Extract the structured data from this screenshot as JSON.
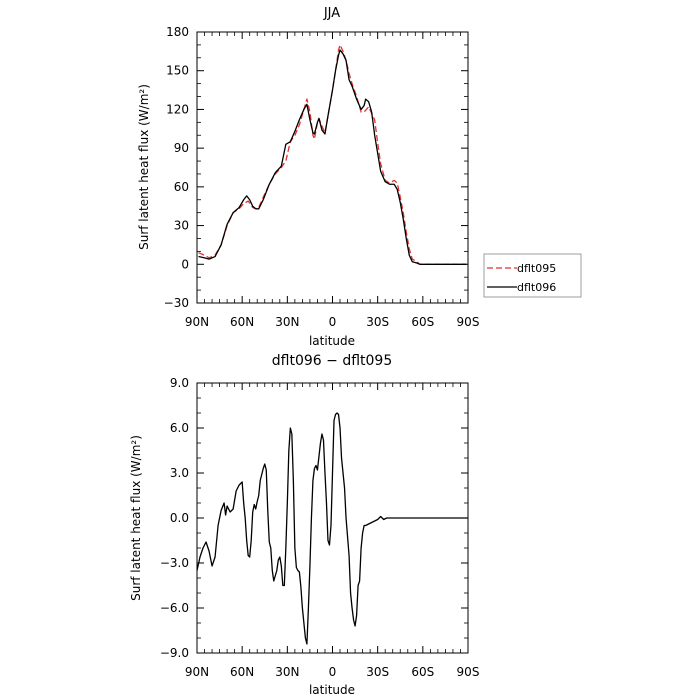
{
  "chart_data": [
    {
      "type": "line",
      "title": "JJA",
      "xlabel": "latitude",
      "ylabel": "Surf latent heat flux (W/m²)",
      "xlim": [
        -90,
        90
      ],
      "ylim": [
        -30,
        180
      ],
      "xticks": [
        -90,
        -60,
        -30,
        0,
        30,
        60,
        90
      ],
      "xtick_labels": [
        "90N",
        "60N",
        "30N",
        "0",
        "30S",
        "60S",
        "90S"
      ],
      "yticks": [
        -30,
        0,
        30,
        60,
        90,
        120,
        150,
        180
      ],
      "ytick_labels": [
        "−30",
        "0",
        "30",
        "60",
        "90",
        "120",
        "150",
        "180"
      ],
      "legend_position": "right",
      "series": [
        {
          "name": "dflt095",
          "color": "#e03030",
          "dash": "dashed",
          "points": [
            [
              -89,
              9
            ],
            [
              -85,
              7
            ],
            [
              -82,
              5
            ],
            [
              -78,
              7
            ],
            [
              -74,
              15
            ],
            [
              -70,
              30
            ],
            [
              -66,
              40
            ],
            [
              -62,
              43
            ],
            [
              -59,
              47
            ],
            [
              -56,
              49
            ],
            [
              -53,
              44
            ],
            [
              -51,
              43
            ],
            [
              -49,
              44
            ],
            [
              -46,
              52
            ],
            [
              -42,
              62
            ],
            [
              -38,
              70
            ],
            [
              -34,
              75
            ],
            [
              -31,
              80
            ],
            [
              -28,
              95
            ],
            [
              -25,
              100
            ],
            [
              -22,
              108
            ],
            [
              -19,
              120
            ],
            [
              -17,
              128
            ],
            [
              -15,
              118
            ],
            [
              -13,
              100
            ],
            [
              -12,
              97
            ],
            [
              -10,
              110
            ],
            [
              -9,
              113
            ],
            [
              -7,
              107
            ],
            [
              -5,
              102
            ],
            [
              -3,
              115
            ],
            [
              0,
              135
            ],
            [
              2,
              150
            ],
            [
              4,
              166
            ],
            [
              5,
              170
            ],
            [
              7,
              165
            ],
            [
              9,
              158
            ],
            [
              11,
              148
            ],
            [
              13,
              140
            ],
            [
              16,
              130
            ],
            [
              19,
              118
            ],
            [
              21,
              118
            ],
            [
              24,
              122
            ],
            [
              26,
              117
            ],
            [
              28,
              112
            ],
            [
              30,
              94
            ],
            [
              32,
              78
            ],
            [
              35,
              65
            ],
            [
              38,
              63
            ],
            [
              41,
              65
            ],
            [
              43,
              63
            ],
            [
              45,
              52
            ],
            [
              47,
              40
            ],
            [
              49,
              25
            ],
            [
              51,
              12
            ],
            [
              53,
              4
            ],
            [
              56,
              2
            ],
            [
              58,
              0
            ],
            [
              62,
              0
            ],
            [
              67,
              0
            ],
            [
              72,
              0
            ],
            [
              80,
              0
            ],
            [
              89,
              0
            ]
          ]
        },
        {
          "name": "dflt096",
          "color": "#000000",
          "dash": "solid",
          "points": [
            [
              -89,
              6
            ],
            [
              -85,
              5
            ],
            [
              -82,
              4
            ],
            [
              -78,
              6
            ],
            [
              -74,
              15
            ],
            [
              -70,
              31
            ],
            [
              -66,
              40
            ],
            [
              -62,
              44
            ],
            [
              -59,
              50
            ],
            [
              -57,
              53
            ],
            [
              -55,
              50
            ],
            [
              -53,
              45
            ],
            [
              -51,
              43
            ],
            [
              -49,
              43
            ],
            [
              -46,
              50
            ],
            [
              -42,
              62
            ],
            [
              -38,
              71
            ],
            [
              -34,
              76
            ],
            [
              -31,
              93
            ],
            [
              -28,
              95
            ],
            [
              -25,
              103
            ],
            [
              -22,
              112
            ],
            [
              -19,
              120
            ],
            [
              -17,
              124
            ],
            [
              -15,
              112
            ],
            [
              -13,
              102
            ],
            [
              -12,
              101
            ],
            [
              -10,
              110
            ],
            [
              -9,
              113
            ],
            [
              -7,
              104
            ],
            [
              -5,
              101
            ],
            [
              -3,
              115
            ],
            [
              0,
              135
            ],
            [
              2,
              150
            ],
            [
              4,
              162
            ],
            [
              5,
              166
            ],
            [
              7,
              163
            ],
            [
              9,
              158
            ],
            [
              11,
              143
            ],
            [
              13,
              138
            ],
            [
              16,
              128
            ],
            [
              19,
              120
            ],
            [
              21,
              123
            ],
            [
              22,
              128
            ],
            [
              24,
              126
            ],
            [
              26,
              118
            ],
            [
              28,
              100
            ],
            [
              30,
              86
            ],
            [
              32,
              72
            ],
            [
              35,
              64
            ],
            [
              38,
              62
            ],
            [
              41,
              62
            ],
            [
              43,
              58
            ],
            [
              45,
              48
            ],
            [
              47,
              35
            ],
            [
              49,
              20
            ],
            [
              51,
              7
            ],
            [
              53,
              2
            ],
            [
              56,
              1
            ],
            [
              58,
              0
            ],
            [
              62,
              0
            ],
            [
              67,
              0
            ],
            [
              72,
              0
            ],
            [
              80,
              0
            ],
            [
              89,
              0
            ]
          ]
        }
      ]
    },
    {
      "type": "line",
      "title": "dflt096 − dflt095",
      "xlabel": "latitude",
      "ylabel": "Surf latent heat flux (W/m²)",
      "xlim": [
        -90,
        90
      ],
      "ylim": [
        -9,
        9
      ],
      "xticks": [
        -90,
        -60,
        -30,
        0,
        30,
        60,
        90
      ],
      "xtick_labels": [
        "90N",
        "60N",
        "30N",
        "0",
        "30S",
        "60S",
        "90S"
      ],
      "yticks": [
        -9,
        -6,
        -3,
        0,
        3,
        6,
        9
      ],
      "ytick_labels": [
        "−9.0",
        "−6.0",
        "−3.0",
        "0.0",
        "3.0",
        "6.0",
        "9.0"
      ],
      "series": [
        {
          "name": "",
          "color": "#000000",
          "dash": "solid",
          "points": [
            [
              -90,
              -3.5
            ],
            [
              -88,
              -2.6
            ],
            [
              -86,
              -2.0
            ],
            [
              -84,
              -1.6
            ],
            [
              -82,
              -2.2
            ],
            [
              -80,
              -3.2
            ],
            [
              -78,
              -2.6
            ],
            [
              -76,
              -0.5
            ],
            [
              -74,
              0.5
            ],
            [
              -72,
              1.0
            ],
            [
              -71,
              0.2
            ],
            [
              -70,
              0.8
            ],
            [
              -68,
              0.4
            ],
            [
              -66,
              0.6
            ],
            [
              -64,
              1.8
            ],
            [
              -62,
              2.2
            ],
            [
              -60,
              2.4
            ],
            [
              -59,
              1.0
            ],
            [
              -58,
              0.0
            ],
            [
              -57,
              -1.5
            ],
            [
              -56,
              -2.5
            ],
            [
              -55,
              -2.6
            ],
            [
              -54,
              -1.5
            ],
            [
              -53,
              0.4
            ],
            [
              -52,
              0.9
            ],
            [
              -51,
              0.6
            ],
            [
              -50,
              1.1
            ],
            [
              -49,
              1.5
            ],
            [
              -48,
              2.5
            ],
            [
              -46,
              3.3
            ],
            [
              -45,
              3.6
            ],
            [
              -44,
              3.2
            ],
            [
              -43,
              0.5
            ],
            [
              -42,
              -1.6
            ],
            [
              -41,
              -2.0
            ],
            [
              -40,
              -3.5
            ],
            [
              -39,
              -4.2
            ],
            [
              -37,
              -3.5
            ],
            [
              -36,
              -2.8
            ],
            [
              -35,
              -2.6
            ],
            [
              -34,
              -3.2
            ],
            [
              -33,
              -4.5
            ],
            [
              -32,
              -4.5
            ],
            [
              -31,
              -2.0
            ],
            [
              -30,
              1.0
            ],
            [
              -29,
              4.5
            ],
            [
              -28,
              6.0
            ],
            [
              -27,
              5.6
            ],
            [
              -26,
              2.5
            ],
            [
              -25,
              -2.0
            ],
            [
              -24,
              -3.3
            ],
            [
              -23,
              -3.5
            ],
            [
              -22,
              -3.6
            ],
            [
              -21,
              -4.6
            ],
            [
              -20,
              -6.0
            ],
            [
              -19,
              -7.0
            ],
            [
              -18,
              -8.0
            ],
            [
              -17,
              -8.4
            ],
            [
              -16,
              -6.0
            ],
            [
              -15,
              -3.2
            ],
            [
              -14,
              0.0
            ],
            [
              -13,
              2.5
            ],
            [
              -12,
              3.3
            ],
            [
              -11,
              3.5
            ],
            [
              -10,
              3.2
            ],
            [
              -8,
              5.0
            ],
            [
              -7,
              5.6
            ],
            [
              -6,
              5.2
            ],
            [
              -5,
              3.0
            ],
            [
              -4,
              1.0
            ],
            [
              -3,
              -1.5
            ],
            [
              -2,
              -1.8
            ],
            [
              -1,
              -0.5
            ],
            [
              0,
              3.0
            ],
            [
              1,
              6.5
            ],
            [
              2,
              6.9
            ],
            [
              3,
              7.0
            ],
            [
              4,
              6.9
            ],
            [
              5,
              6.0
            ],
            [
              6,
              4.0
            ],
            [
              8,
              2.0
            ],
            [
              9,
              0.0
            ],
            [
              11,
              -2.5
            ],
            [
              12,
              -5.0
            ],
            [
              13,
              -6.0
            ],
            [
              14,
              -6.8
            ],
            [
              15,
              -7.2
            ],
            [
              16,
              -6.5
            ],
            [
              17,
              -4.5
            ],
            [
              18,
              -4.2
            ],
            [
              19,
              -2.0
            ],
            [
              20,
              -1.0
            ],
            [
              21,
              -0.5
            ],
            [
              22,
              -0.5
            ],
            [
              24,
              -0.4
            ],
            [
              26,
              -0.3
            ],
            [
              28,
              -0.2
            ],
            [
              30,
              -0.1
            ],
            [
              32,
              0.1
            ],
            [
              34,
              -0.1
            ],
            [
              36,
              0.0
            ],
            [
              90,
              0.0
            ]
          ]
        }
      ]
    }
  ]
}
